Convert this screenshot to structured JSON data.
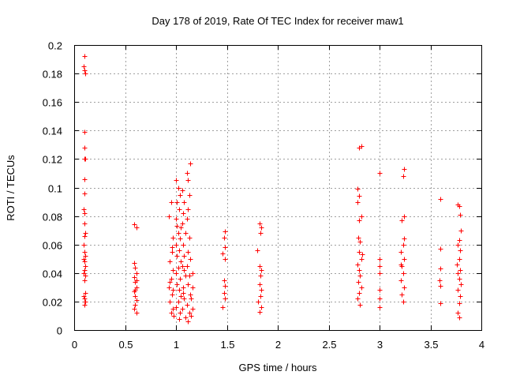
{
  "chart_data": {
    "type": "scatter",
    "title": "Day 178 of 2019, Rate Of TEC Index for receiver maw1",
    "xlabel": "GPS time / hours",
    "ylabel": "ROTI / TECUs",
    "xlim": [
      0,
      4
    ],
    "ylim": [
      0,
      0.2
    ],
    "xticks": [
      0,
      0.5,
      1,
      1.5,
      2,
      2.5,
      3,
      3.5,
      4
    ],
    "yticks": [
      0,
      0.02,
      0.04,
      0.06,
      0.08,
      0.1,
      0.12,
      0.14,
      0.16,
      0.18,
      0.2
    ],
    "xtick_labels": [
      "0",
      "0.5",
      "1",
      "1.5",
      "2",
      "2.5",
      "3",
      "3.5",
      "4"
    ],
    "ytick_labels": [
      "0",
      "0.02",
      "0.04",
      "0.06",
      "0.08",
      "0.1",
      "0.12",
      "0.14",
      "0.16",
      "0.18",
      "0.2"
    ],
    "grid": true,
    "marker": "+",
    "marker_color": "#ff0000",
    "series": [
      {
        "name": "ROTI",
        "points": [
          [
            0.1,
            0.192
          ],
          [
            0.09,
            0.185
          ],
          [
            0.1,
            0.182
          ],
          [
            0.11,
            0.18
          ],
          [
            0.1,
            0.139
          ],
          [
            0.1,
            0.128
          ],
          [
            0.1,
            0.12
          ],
          [
            0.11,
            0.12
          ],
          [
            0.1,
            0.106
          ],
          [
            0.1,
            0.096
          ],
          [
            0.09,
            0.085
          ],
          [
            0.1,
            0.082
          ],
          [
            0.1,
            0.075
          ],
          [
            0.11,
            0.068
          ],
          [
            0.1,
            0.066
          ],
          [
            0.09,
            0.06
          ],
          [
            0.1,
            0.055
          ],
          [
            0.11,
            0.052
          ],
          [
            0.09,
            0.05
          ],
          [
            0.1,
            0.048
          ],
          [
            0.11,
            0.045
          ],
          [
            0.1,
            0.042
          ],
          [
            0.09,
            0.04
          ],
          [
            0.11,
            0.038
          ],
          [
            0.1,
            0.035
          ],
          [
            0.11,
            0.026
          ],
          [
            0.09,
            0.024
          ],
          [
            0.1,
            0.022
          ],
          [
            0.11,
            0.02
          ],
          [
            0.1,
            0.018
          ],
          [
            0.59,
            0.074
          ],
          [
            0.61,
            0.072
          ],
          [
            0.59,
            0.047
          ],
          [
            0.6,
            0.044
          ],
          [
            0.61,
            0.04
          ],
          [
            0.59,
            0.037
          ],
          [
            0.6,
            0.034
          ],
          [
            0.61,
            0.03
          ],
          [
            0.59,
            0.027
          ],
          [
            0.6,
            0.024
          ],
          [
            0.61,
            0.021
          ],
          [
            0.6,
            0.018
          ],
          [
            0.59,
            0.015
          ],
          [
            0.61,
            0.012
          ],
          [
            0.6,
            0.028
          ],
          [
            0.61,
            0.035
          ],
          [
            0.95,
            0.09
          ],
          [
            0.93,
            0.08
          ],
          [
            0.97,
            0.065
          ],
          [
            0.96,
            0.055
          ],
          [
            0.94,
            0.048
          ],
          [
            0.97,
            0.042
          ],
          [
            0.95,
            0.036
          ],
          [
            0.93,
            0.03
          ],
          [
            0.96,
            0.025
          ],
          [
            0.94,
            0.02
          ],
          [
            0.97,
            0.015
          ],
          [
            0.95,
            0.012
          ],
          [
            0.98,
            0.01
          ],
          [
            0.96,
            0.058
          ],
          [
            0.94,
            0.034
          ],
          [
            0.97,
            0.028
          ],
          [
            1.0,
            0.105
          ],
          [
            1.02,
            0.1
          ],
          [
            1.04,
            0.095
          ],
          [
            1.01,
            0.09
          ],
          [
            1.03,
            0.085
          ],
          [
            1.0,
            0.078
          ],
          [
            1.05,
            0.072
          ],
          [
            1.02,
            0.068
          ],
          [
            1.04,
            0.064
          ],
          [
            1.0,
            0.06
          ],
          [
            1.03,
            0.056
          ],
          [
            1.01,
            0.052
          ],
          [
            1.05,
            0.048
          ],
          [
            1.02,
            0.044
          ],
          [
            1.0,
            0.04
          ],
          [
            1.04,
            0.036
          ],
          [
            1.01,
            0.032
          ],
          [
            1.03,
            0.028
          ],
          [
            1.05,
            0.024
          ],
          [
            1.02,
            0.02
          ],
          [
            1.0,
            0.016
          ],
          [
            1.04,
            0.012
          ],
          [
            1.03,
            0.008
          ],
          [
            1.01,
            0.073
          ],
          [
            1.06,
            0.098
          ],
          [
            1.08,
            0.09
          ],
          [
            1.07,
            0.082
          ],
          [
            1.06,
            0.075
          ],
          [
            1.09,
            0.068
          ],
          [
            1.07,
            0.06
          ],
          [
            1.08,
            0.052
          ],
          [
            1.06,
            0.045
          ],
          [
            1.09,
            0.038
          ],
          [
            1.07,
            0.03
          ],
          [
            1.08,
            0.022
          ],
          [
            1.06,
            0.015
          ],
          [
            1.09,
            0.009
          ],
          [
            1.07,
            0.026
          ],
          [
            1.08,
            0.042
          ],
          [
            1.11,
            0.11
          ],
          [
            1.12,
            0.105
          ],
          [
            1.14,
            0.117
          ],
          [
            1.13,
            0.095
          ],
          [
            1.12,
            0.085
          ],
          [
            1.11,
            0.078
          ],
          [
            1.13,
            0.065
          ],
          [
            1.12,
            0.055
          ],
          [
            1.14,
            0.05
          ],
          [
            1.11,
            0.045
          ],
          [
            1.13,
            0.038
          ],
          [
            1.12,
            0.032
          ],
          [
            1.14,
            0.025
          ],
          [
            1.11,
            0.018
          ],
          [
            1.13,
            0.012
          ],
          [
            1.12,
            0.006
          ],
          [
            1.16,
            0.03
          ],
          [
            1.15,
            0.022
          ],
          [
            1.16,
            0.015
          ],
          [
            1.15,
            0.01
          ],
          [
            1.16,
            0.04
          ],
          [
            1.48,
            0.069
          ],
          [
            1.47,
            0.065
          ],
          [
            1.48,
            0.058
          ],
          [
            1.46,
            0.054
          ],
          [
            1.48,
            0.05
          ],
          [
            1.47,
            0.035
          ],
          [
            1.48,
            0.031
          ],
          [
            1.47,
            0.026
          ],
          [
            1.48,
            0.022
          ],
          [
            1.46,
            0.016
          ],
          [
            1.82,
            0.075
          ],
          [
            1.84,
            0.072
          ],
          [
            1.83,
            0.068
          ],
          [
            1.8,
            0.056
          ],
          [
            1.82,
            0.045
          ],
          [
            1.84,
            0.042
          ],
          [
            1.83,
            0.038
          ],
          [
            1.82,
            0.032
          ],
          [
            1.84,
            0.028
          ],
          [
            1.83,
            0.024
          ],
          [
            1.81,
            0.02
          ],
          [
            1.84,
            0.016
          ],
          [
            1.82,
            0.013
          ],
          [
            2.8,
            0.128
          ],
          [
            2.82,
            0.129
          ],
          [
            2.78,
            0.099
          ],
          [
            2.8,
            0.094
          ],
          [
            2.78,
            0.09
          ],
          [
            2.82,
            0.08
          ],
          [
            2.8,
            0.077
          ],
          [
            2.79,
            0.065
          ],
          [
            2.81,
            0.062
          ],
          [
            2.8,
            0.055
          ],
          [
            2.82,
            0.05
          ],
          [
            2.78,
            0.046
          ],
          [
            2.8,
            0.042
          ],
          [
            2.81,
            0.038
          ],
          [
            2.79,
            0.034
          ],
          [
            2.82,
            0.03
          ],
          [
            2.8,
            0.026
          ],
          [
            2.78,
            0.022
          ],
          [
            2.81,
            0.018
          ],
          [
            2.83,
            0.053
          ],
          [
            3.0,
            0.11
          ],
          [
            3.0,
            0.05
          ],
          [
            3.0,
            0.045
          ],
          [
            3.0,
            0.04
          ],
          [
            3.0,
            0.028
          ],
          [
            3.0,
            0.022
          ],
          [
            3.0,
            0.016
          ],
          [
            3.24,
            0.113
          ],
          [
            3.23,
            0.108
          ],
          [
            3.24,
            0.08
          ],
          [
            3.22,
            0.077
          ],
          [
            3.24,
            0.064
          ],
          [
            3.23,
            0.06
          ],
          [
            3.21,
            0.055
          ],
          [
            3.24,
            0.05
          ],
          [
            3.22,
            0.045
          ],
          [
            3.23,
            0.04
          ],
          [
            3.21,
            0.035
          ],
          [
            3.24,
            0.03
          ],
          [
            3.22,
            0.025
          ],
          [
            3.23,
            0.02
          ],
          [
            3.21,
            0.046
          ],
          [
            3.6,
            0.092
          ],
          [
            3.6,
            0.057
          ],
          [
            3.6,
            0.043
          ],
          [
            3.59,
            0.035
          ],
          [
            3.6,
            0.031
          ],
          [
            3.6,
            0.019
          ],
          [
            3.77,
            0.088
          ],
          [
            3.78,
            0.087
          ],
          [
            3.79,
            0.081
          ],
          [
            3.8,
            0.07
          ],
          [
            3.78,
            0.063
          ],
          [
            3.77,
            0.06
          ],
          [
            3.79,
            0.056
          ],
          [
            3.78,
            0.05
          ],
          [
            3.76,
            0.046
          ],
          [
            3.79,
            0.042
          ],
          [
            3.77,
            0.04
          ],
          [
            3.78,
            0.036
          ],
          [
            3.8,
            0.032
          ],
          [
            3.77,
            0.028
          ],
          [
            3.79,
            0.024
          ],
          [
            3.78,
            0.019
          ],
          [
            3.77,
            0.012
          ],
          [
            3.78,
            0.009
          ]
        ]
      }
    ]
  }
}
